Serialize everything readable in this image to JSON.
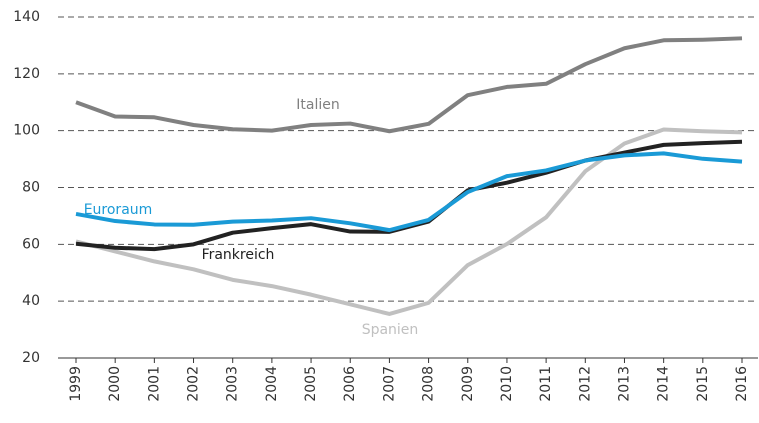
{
  "chart_data": {
    "type": "line",
    "categories": [
      "1999",
      "2000",
      "2001",
      "2002",
      "2003",
      "2004",
      "2005",
      "2006",
      "2007",
      "2008",
      "2009",
      "2010",
      "2011",
      "2012",
      "2013",
      "2014",
      "2015",
      "2016"
    ],
    "series": [
      {
        "name": "Italien",
        "color": "#808080",
        "values": [
          110,
          105,
          104.7,
          102,
          100.5,
          100,
          102,
          102.5,
          99.8,
          102.4,
          112.5,
          115.4,
          116.5,
          123.4,
          129,
          131.8,
          132,
          132.5
        ]
      },
      {
        "name": "Spanien",
        "color": "#c0c0c0",
        "values": [
          61,
          57.5,
          54,
          51.2,
          47.5,
          45.3,
          42.3,
          38.9,
          35.5,
          39.4,
          52.7,
          60.1,
          69.5,
          85.7,
          95.5,
          100.4,
          99.8,
          99.4
        ]
      },
      {
        "name": "Frankreich",
        "color": "#222222",
        "values": [
          60.2,
          58.8,
          58.3,
          60,
          64.1,
          65.7,
          67.1,
          64.5,
          64.4,
          68,
          79,
          81.7,
          85.2,
          89.5,
          92.3,
          95,
          95.6,
          96.1
        ]
      },
      {
        "name": "Euroraum",
        "color": "#1a9ad6",
        "values": [
          70.7,
          68.2,
          67,
          66.9,
          68,
          68.4,
          69.2,
          67.4,
          65,
          68.6,
          78.4,
          84,
          86,
          89.5,
          91.3,
          92,
          90.1,
          89.1
        ]
      }
    ],
    "ylim": [
      20,
      140
    ],
    "yticks": [
      20,
      40,
      60,
      80,
      100,
      120,
      140
    ],
    "grid": true
  }
}
